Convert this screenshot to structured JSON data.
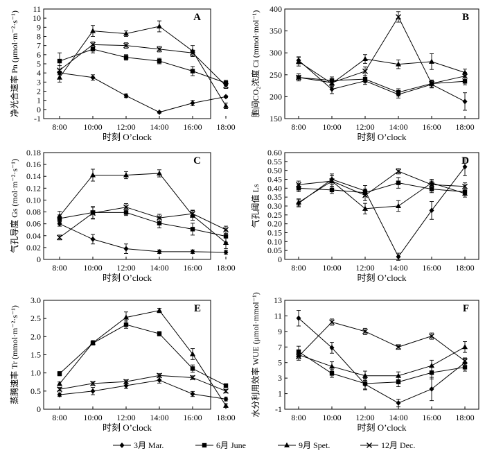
{
  "legend": {
    "items": [
      {
        "label": "3月 Mar.",
        "marker": "diamond"
      },
      {
        "label": "6月 June",
        "marker": "square"
      },
      {
        "label": "9月 Spet.",
        "marker": "triangle"
      },
      {
        "label": "12月 Dec.",
        "marker": "cross"
      }
    ]
  },
  "colors": {
    "line": "#000000",
    "background": "#ffffff"
  },
  "chart_data": [
    {
      "type": "line",
      "panel": "A",
      "xlabel": "时刻 O’clock",
      "ylabel": "净光合速率 Pn (μmol·m⁻²·s⁻¹)",
      "categories": [
        "8:00",
        "10:00",
        "12:00",
        "14:00",
        "16:00",
        "18:00"
      ],
      "ylim": [
        -1,
        11
      ],
      "yticks": [
        "-1",
        "0",
        "1",
        "2",
        "3",
        "4",
        "5",
        "6",
        "7",
        "8",
        "9",
        "10",
        "11"
      ],
      "series": [
        {
          "name": "3月 Mar.",
          "marker": "diamond",
          "values": [
            4.0,
            3.5,
            1.5,
            -0.3,
            0.7,
            1.4
          ],
          "err": [
            0.2,
            0.3,
            0.2,
            0.1,
            0.3,
            0.1
          ]
        },
        {
          "name": "6月 June",
          "marker": "square",
          "values": [
            5.3,
            6.6,
            5.7,
            5.3,
            4.2,
            2.9
          ],
          "err": [
            0.9,
            0.4,
            0.3,
            0.3,
            0.5,
            0.3
          ]
        },
        {
          "name": "9月 Spet.",
          "marker": "triangle",
          "values": [
            3.5,
            8.6,
            8.3,
            9.1,
            6.4,
            0.4
          ],
          "err": [
            0.5,
            0.6,
            0.3,
            0.6,
            0.6,
            0.3
          ]
        },
        {
          "name": "12月 Dec.",
          "marker": "cross",
          "values": [
            4.3,
            7.1,
            7.0,
            6.6,
            6.2,
            2.6
          ],
          "err": [
            0.5,
            0.3,
            0.3,
            0.3,
            0.3,
            0.3
          ]
        }
      ]
    },
    {
      "type": "line",
      "panel": "B",
      "xlabel": "时刻 O’clock",
      "ylabel": "胞间CO₂浓度 Ci (mmol·mol⁻¹)",
      "categories": [
        "8:00",
        "10:00",
        "12:00",
        "14:00",
        "16:00",
        "18:00"
      ],
      "ylim": [
        150,
        400
      ],
      "yticks": [
        "150",
        "200",
        "250",
        "300",
        "350",
        "400"
      ],
      "series": [
        {
          "name": "3月 Mar.",
          "marker": "diamond",
          "values": [
            283,
            217,
            236,
            205,
            228,
            189
          ],
          "err": [
            8,
            10,
            8,
            8,
            8,
            20
          ]
        },
        {
          "name": "6月 June",
          "marker": "square",
          "values": [
            244,
            237,
            240,
            210,
            230,
            235
          ],
          "err": [
            8,
            8,
            8,
            8,
            8,
            8
          ]
        },
        {
          "name": "9月 Spet.",
          "marker": "triangle",
          "values": [
            280,
            230,
            286,
            274,
            280,
            255
          ],
          "err": [
            10,
            8,
            10,
            10,
            18,
            8
          ]
        },
        {
          "name": "12月 Dec.",
          "marker": "cross",
          "values": [
            244,
            232,
            258,
            382,
            230,
            247
          ],
          "err": [
            8,
            8,
            10,
            12,
            8,
            8
          ]
        }
      ]
    },
    {
      "type": "line",
      "panel": "C",
      "xlabel": "时刻 O’clock",
      "ylabel": "气孔导度 Gs (mol·m⁻²·s⁻¹)",
      "categories": [
        "8:00",
        "10:00",
        "12:00",
        "14:00",
        "16:00",
        "18:00"
      ],
      "ylim": [
        0,
        0.18
      ],
      "yticks": [
        "0",
        "0.02",
        "0.04",
        "0.06",
        "0.08",
        "0.10",
        "0.12",
        "0.14",
        "0.16",
        "0.18"
      ],
      "series": [
        {
          "name": "3月 Mar.",
          "marker": "diamond",
          "values": [
            0.06,
            0.034,
            0.018,
            0.013,
            0.013,
            0.012
          ],
          "err": [
            0.004,
            0.008,
            0.008,
            0.003,
            0.003,
            0.003
          ]
        },
        {
          "name": "6月 June",
          "marker": "square",
          "values": [
            0.069,
            0.079,
            0.079,
            0.061,
            0.051,
            0.039
          ],
          "err": [
            0.006,
            0.01,
            0.005,
            0.008,
            0.01,
            0.01
          ]
        },
        {
          "name": "9月 Spet.",
          "marker": "triangle",
          "values": [
            0.073,
            0.142,
            0.142,
            0.145,
            0.074,
            0.028
          ],
          "err": [
            0.008,
            0.01,
            0.006,
            0.006,
            0.008,
            0.01
          ]
        },
        {
          "name": "12月 Dec.",
          "marker": "cross",
          "values": [
            0.037,
            0.078,
            0.088,
            0.07,
            0.077,
            0.05
          ],
          "err": [
            0.004,
            0.01,
            0.006,
            0.006,
            0.006,
            0.006
          ]
        }
      ]
    },
    {
      "type": "line",
      "panel": "D",
      "xlabel": "时刻 O’clock",
      "ylabel": "气孔阈值 Ls",
      "categories": [
        "8:00",
        "10:00",
        "12:00",
        "14:00",
        "16:00",
        "18:00"
      ],
      "ylim": [
        0,
        0.6
      ],
      "yticks": [
        "0",
        "0.05",
        "0.10",
        "0.15",
        "0.20",
        "0.25",
        "0.30",
        "0.35",
        "0.40",
        "0.45",
        "0.50",
        "0.55",
        "0.60"
      ],
      "series": [
        {
          "name": "3月 Mar.",
          "marker": "diamond",
          "values": [
            0.315,
            0.45,
            0.385,
            0.015,
            0.275,
            0.52
          ],
          "err": [
            0.02,
            0.03,
            0.03,
            0.02,
            0.05,
            0.05
          ]
        },
        {
          "name": "6月 June",
          "marker": "square",
          "values": [
            0.4,
            0.39,
            0.375,
            0.43,
            0.395,
            0.38
          ],
          "err": [
            0.02,
            0.02,
            0.02,
            0.03,
            0.02,
            0.02
          ]
        },
        {
          "name": "9月 Spet.",
          "marker": "triangle",
          "values": [
            0.32,
            0.44,
            0.285,
            0.3,
            0.43,
            0.37
          ],
          "err": [
            0.02,
            0.03,
            0.03,
            0.03,
            0.02,
            0.02
          ]
        },
        {
          "name": "12月 Dec.",
          "marker": "cross",
          "values": [
            0.42,
            0.44,
            0.36,
            0.495,
            0.42,
            0.41
          ],
          "err": [
            0.02,
            0.03,
            0.03,
            0.015,
            0.02,
            0.02
          ]
        }
      ]
    },
    {
      "type": "line",
      "panel": "E",
      "xlabel": "时刻 O’clock",
      "ylabel": "蒸腾速率 Tr (mmol·m⁻²·s⁻¹)",
      "categories": [
        "8:00",
        "10:00",
        "12:00",
        "14:00",
        "16:00",
        "18:00"
      ],
      "ylim": [
        0,
        3.0
      ],
      "yticks": [
        "0",
        "0.5",
        "1.0",
        "1.5",
        "2.0",
        "2.5",
        "3.0"
      ],
      "series": [
        {
          "name": "3月 Mar.",
          "marker": "diamond",
          "values": [
            0.4,
            0.5,
            0.65,
            0.8,
            0.42,
            0.28
          ],
          "err": [
            0.05,
            0.1,
            0.08,
            0.08,
            0.07,
            0.05
          ]
        },
        {
          "name": "6月 June",
          "marker": "square",
          "values": [
            0.98,
            1.82,
            2.33,
            2.08,
            1.12,
            0.65
          ],
          "err": [
            0.06,
            0.05,
            0.1,
            0.06,
            0.1,
            0.05
          ]
        },
        {
          "name": "9月 Spet.",
          "marker": "triangle",
          "values": [
            0.7,
            1.83,
            2.53,
            2.72,
            1.52,
            0.1
          ],
          "err": [
            0.05,
            0.06,
            0.15,
            0.06,
            0.15,
            0.05
          ]
        },
        {
          "name": "12月 Dec.",
          "marker": "cross",
          "values": [
            0.55,
            0.71,
            0.76,
            0.93,
            0.87,
            0.5
          ],
          "err": [
            0.05,
            0.05,
            0.05,
            0.05,
            0.05,
            0.05
          ]
        }
      ]
    },
    {
      "type": "line",
      "panel": "F",
      "xlabel": "时刻 O’clock",
      "ylabel": "水分利用效率 WUE (μmol·mmol⁻¹)",
      "categories": [
        "8:00",
        "10:00",
        "12:00",
        "14:00",
        "16:00",
        "18:00"
      ],
      "ylim": [
        -1,
        13
      ],
      "yticks": [
        "-1",
        "1",
        "3",
        "5",
        "7",
        "9",
        "11",
        "13"
      ],
      "series": [
        {
          "name": "3月 Mar.",
          "marker": "diamond",
          "values": [
            10.7,
            6.9,
            2.2,
            -0.2,
            1.6,
            5.0
          ],
          "err": [
            1.0,
            0.7,
            0.7,
            0.5,
            1.5,
            0.5
          ]
        },
        {
          "name": "6月 June",
          "marker": "square",
          "values": [
            6.4,
            3.6,
            2.3,
            2.5,
            3.7,
            4.4
          ],
          "err": [
            0.7,
            0.5,
            0.7,
            0.6,
            0.8,
            0.5
          ]
        },
        {
          "name": "9月 Spet.",
          "marker": "triangle",
          "values": [
            6.0,
            4.5,
            3.3,
            3.3,
            4.6,
            7.0
          ],
          "err": [
            0.5,
            0.6,
            0.6,
            0.5,
            0.7,
            0.7
          ]
        },
        {
          "name": "12月 Dec.",
          "marker": "cross",
          "values": [
            5.8,
            10.2,
            9.0,
            7.0,
            8.4,
            5.2
          ],
          "err": [
            0.5,
            0.4,
            0.4,
            0.3,
            0.4,
            0.4
          ]
        }
      ]
    }
  ]
}
